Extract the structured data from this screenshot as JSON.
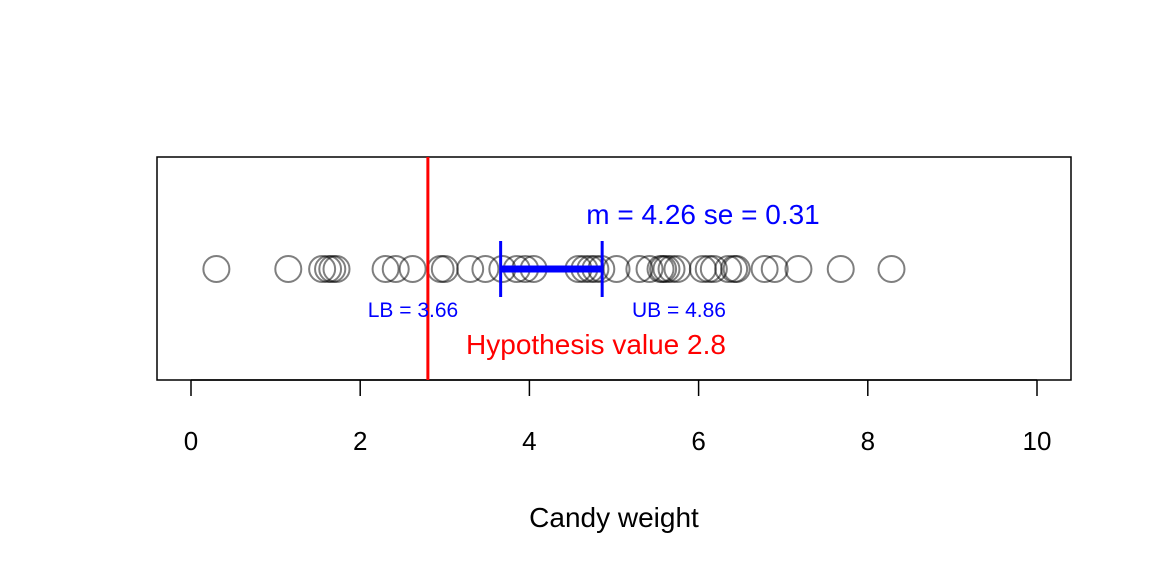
{
  "chart_data": {
    "type": "scatter",
    "xlabel": "Candy weight",
    "xlim": [
      0,
      10
    ],
    "xticks": [
      "0",
      "2",
      "4",
      "6",
      "8",
      "10"
    ],
    "points": [
      0.3,
      1.15,
      1.55,
      1.62,
      1.67,
      1.72,
      2.3,
      2.42,
      2.62,
      2.95,
      3.0,
      3.3,
      3.48,
      3.68,
      3.85,
      3.95,
      4.05,
      4.58,
      4.65,
      4.72,
      4.78,
      4.85,
      5.03,
      5.3,
      5.42,
      5.55,
      5.58,
      5.62,
      5.68,
      5.75,
      6.05,
      6.12,
      6.18,
      6.35,
      6.42,
      6.45,
      6.78,
      6.9,
      7.18,
      7.68,
      8.28
    ],
    "mean": 4.26,
    "se": 0.31,
    "lb": 3.66,
    "ub": 4.86,
    "hypothesis": 2.8,
    "stat_text": "m = 4.26 se = 0.31",
    "lb_text": "LB = 3.66",
    "ub_text": "UB = 4.86",
    "hypothesis_text": "Hypothesis value 2.8",
    "colors": {
      "points": "#000000",
      "interval": "#0000ff",
      "hypothesis": "#ff0000"
    }
  }
}
